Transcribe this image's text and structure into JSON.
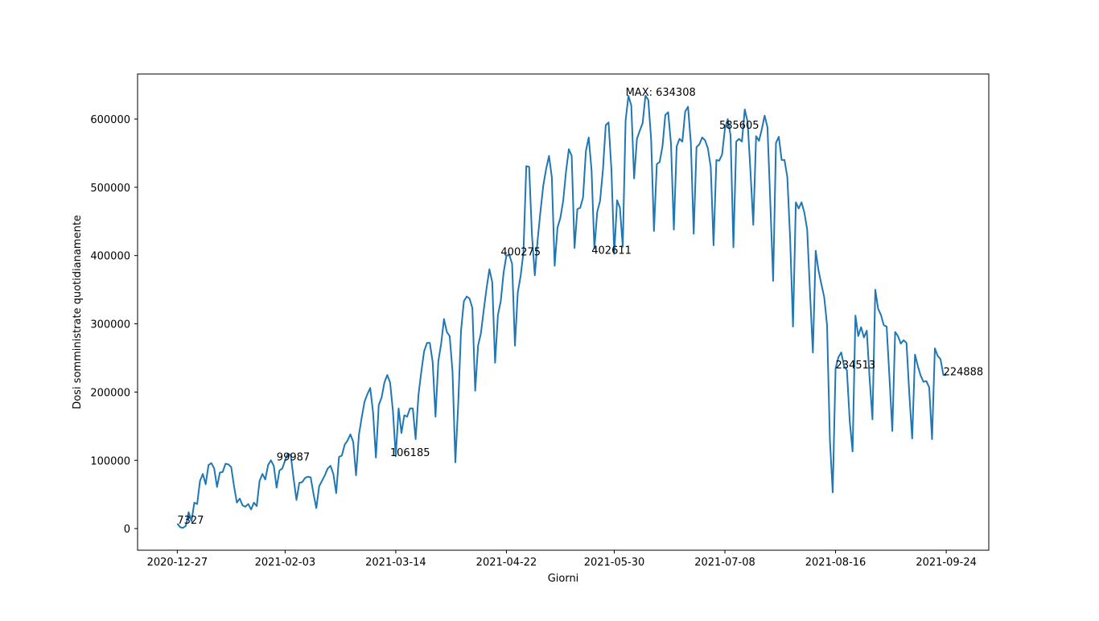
{
  "chart_data": {
    "type": "line",
    "title": "",
    "xlabel": "Giorni",
    "ylabel": "Dosi somministrate quotidianamente",
    "x_start": "2020-12-27",
    "x_end": "2021-09-24",
    "xlim": [
      "2020-12-13",
      "2021-10-09"
    ],
    "ylim": [
      -31700,
      666000
    ],
    "xticks": [
      "2020-12-27",
      "2021-02-03",
      "2021-03-14",
      "2021-04-22",
      "2021-05-30",
      "2021-07-08",
      "2021-08-16",
      "2021-09-24"
    ],
    "yticks": [
      0,
      100000,
      200000,
      300000,
      400000,
      500000,
      600000
    ],
    "ytick_labels": [
      "0",
      "100000",
      "200000",
      "300000",
      "400000",
      "500000",
      "600000"
    ],
    "grid": false,
    "line_color": "#1f77b4",
    "series": [
      {
        "values": [
          7327,
          2000,
          1000,
          4000,
          24000,
          11000,
          38000,
          36000,
          70000,
          80000,
          65000,
          93000,
          96000,
          88000,
          61000,
          82000,
          83000,
          95000,
          94000,
          90000,
          62000,
          38000,
          44000,
          34000,
          32000,
          36000,
          28000,
          38000,
          33000,
          70000,
          80000,
          72000,
          93000,
          99987,
          92000,
          60000,
          85000,
          88000,
          100000,
          110000,
          107000,
          73000,
          42000,
          67000,
          68000,
          74000,
          76000,
          75000,
          51000,
          30000,
          62000,
          70000,
          78000,
          88000,
          92000,
          80000,
          52000,
          105000,
          107000,
          123000,
          129000,
          138000,
          127000,
          78000,
          137000,
          163000,
          186000,
          197000,
          206000,
          170000,
          104000,
          181000,
          192000,
          214000,
          225000,
          214000,
          172000,
          106185,
          176000,
          140000,
          166000,
          164000,
          176000,
          176000,
          131000,
          196000,
          230000,
          260000,
          272000,
          272000,
          244000,
          164000,
          245000,
          271000,
          307000,
          288000,
          282000,
          230000,
          97000,
          182000,
          290000,
          333000,
          340000,
          337000,
          323000,
          202000,
          268000,
          286000,
          320000,
          352000,
          380000,
          361000,
          243000,
          313000,
          333000,
          375000,
          400275,
          401000,
          388000,
          268000,
          346000,
          370000,
          405000,
          531000,
          530000,
          430000,
          371000,
          423000,
          465000,
          503000,
          527000,
          546000,
          515000,
          385000,
          441000,
          455000,
          480000,
          523000,
          556000,
          546000,
          411000,
          468000,
          470000,
          485000,
          553000,
          573000,
          525000,
          410000,
          464000,
          480000,
          525000,
          591000,
          595000,
          526000,
          402611,
          481000,
          470000,
          413000,
          598000,
          634000,
          620000,
          513000,
          571000,
          583000,
          594000,
          634308,
          628000,
          570000,
          436000,
          534000,
          537000,
          560000,
          606000,
          610000,
          564000,
          438000,
          560000,
          571000,
          567000,
          611000,
          618000,
          565000,
          432000,
          559000,
          563000,
          573000,
          569000,
          557000,
          530000,
          415000,
          540000,
          539000,
          548000,
          585605,
          600000,
          576000,
          412000,
          567000,
          571000,
          567000,
          614000,
          596000,
          524000,
          445000,
          575000,
          568000,
          585000,
          605000,
          588000,
          478000,
          363000,
          565000,
          574000,
          540000,
          540000,
          515000,
          424000,
          296000,
          478000,
          469000,
          478000,
          463000,
          438000,
          345000,
          258000,
          407000,
          378000,
          358000,
          339000,
          298000,
          130000,
          53000,
          234513,
          251000,
          258000,
          238000,
          232000,
          157000,
          113000,
          312000,
          282000,
          295000,
          280000,
          290000,
          220000,
          160000,
          350000,
          322000,
          313000,
          298000,
          296000,
          221000,
          143000,
          288000,
          282000,
          271000,
          276000,
          272000,
          197000,
          132000,
          255000,
          238000,
          224000,
          215000,
          216000,
          207000,
          131000,
          264000,
          253000,
          248000,
          224888,
          225000
        ]
      }
    ],
    "annotations": [
      {
        "text": "7327",
        "x": "2020-12-27",
        "y": 7327
      },
      {
        "text": "99987",
        "x": "2021-01-31",
        "y": 99987
      },
      {
        "text": "106185",
        "x": "2021-03-12",
        "y": 106185
      },
      {
        "text": "400275",
        "x": "2021-04-20",
        "y": 400275
      },
      {
        "text": "402611",
        "x": "2021-05-22",
        "y": 402611
      },
      {
        "text": "MAX: 634308",
        "x": "2021-06-03",
        "y": 634308
      },
      {
        "text": "585605",
        "x": "2021-07-06",
        "y": 585605
      },
      {
        "text": "234513",
        "x": "2021-08-16",
        "y": 234513
      },
      {
        "text": "224888",
        "x": "2021-09-23",
        "y": 224888
      }
    ]
  }
}
